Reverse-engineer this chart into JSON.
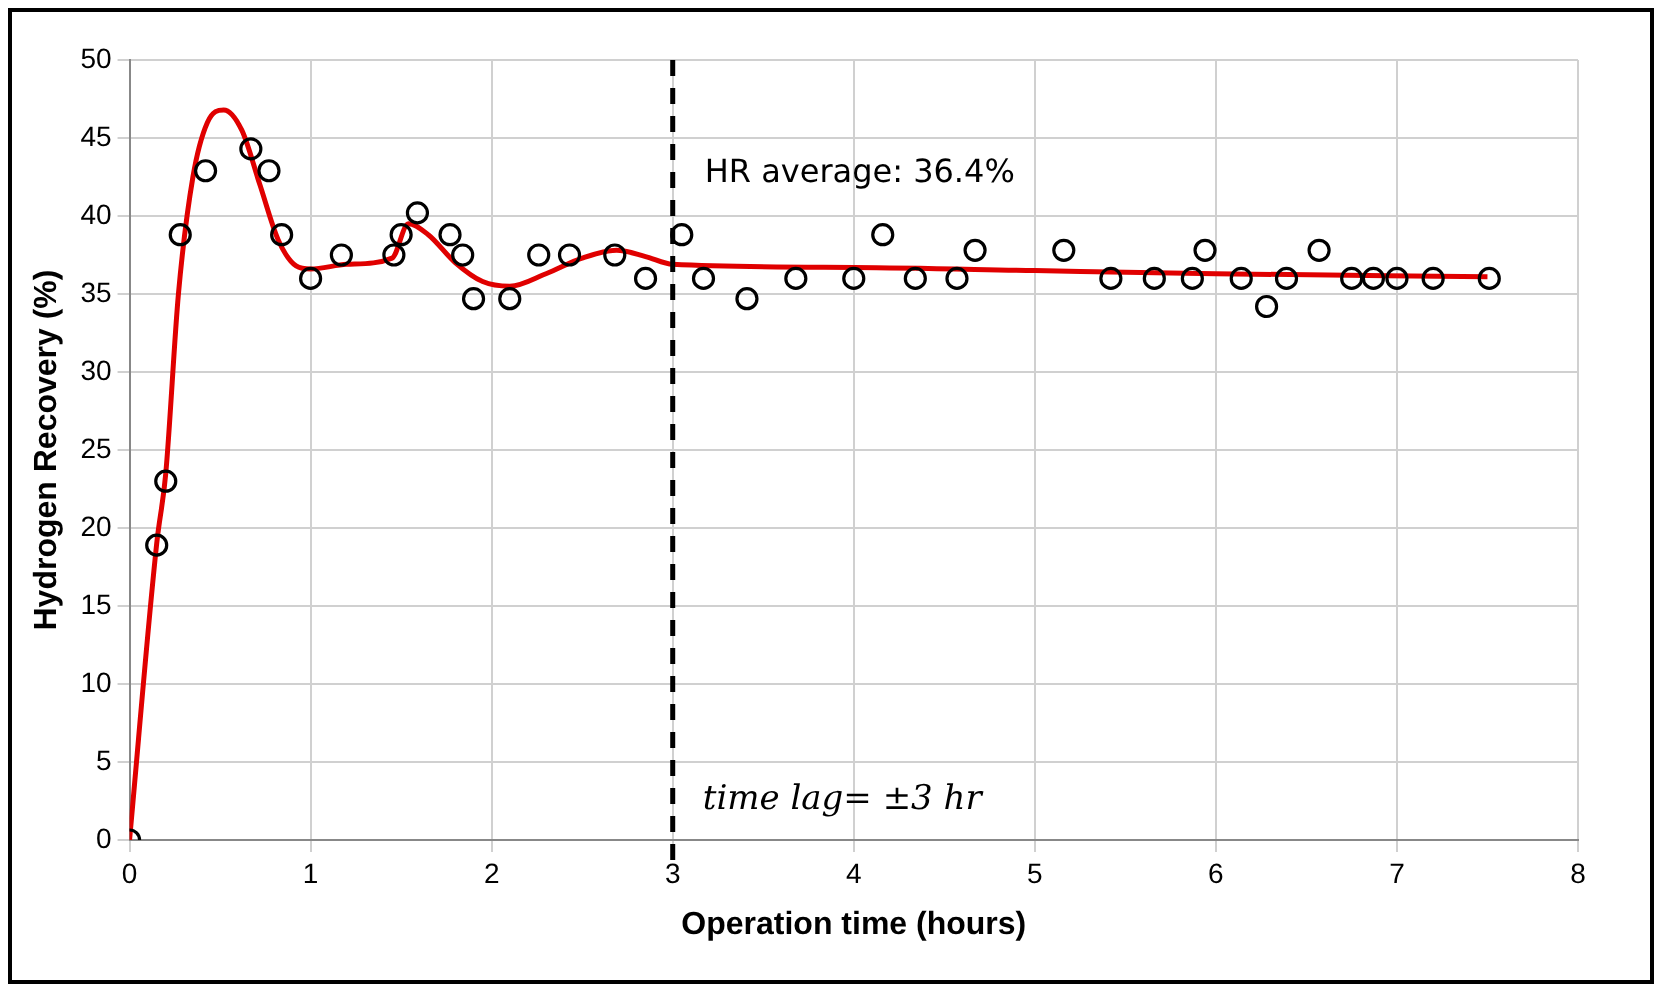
{
  "chart_data": {
    "type": "scatter",
    "xlabel": "Operation time (hours)",
    "ylabel": "Hydrogen Recovery (%)",
    "xlim": [
      0,
      8
    ],
    "xticks": [
      0,
      1,
      2,
      3,
      4,
      5,
      6,
      7,
      8
    ],
    "ylim": [
      0,
      50
    ],
    "yticks": [
      0,
      5,
      10,
      15,
      20,
      25,
      30,
      35,
      40,
      45,
      50
    ],
    "grid": true,
    "legend": false,
    "marker": "circle",
    "series": [
      {
        "type": "scatter",
        "color": "#000000",
        "x": [
          0,
          0.15,
          0.2,
          0.28,
          0.42,
          0.67,
          0.77,
          0.84,
          1.0,
          1.17,
          1.46,
          1.5,
          1.59,
          1.77,
          1.84,
          1.9,
          2.1,
          2.26,
          2.43,
          2.68,
          2.85,
          3.05,
          3.17,
          3.41,
          3.68,
          4.0,
          4.16,
          4.34,
          4.57,
          4.67,
          5.16,
          5.42,
          5.66,
          5.87,
          5.94,
          6.14,
          6.28,
          6.39,
          6.57,
          6.75,
          6.87,
          7.0,
          7.2,
          7.51
        ],
        "values": [
          0,
          18.9,
          23,
          38.8,
          42.9,
          44.3,
          42.9,
          38.8,
          36,
          37.5,
          37.5,
          38.8,
          40.2,
          38.8,
          37.5,
          34.7,
          34.7,
          37.5,
          37.5,
          37.5,
          36,
          38.8,
          36,
          34.7,
          36,
          36,
          38.8,
          36,
          36,
          37.8,
          37.8,
          36,
          36,
          36,
          37.8,
          36,
          34.2,
          36,
          37.8,
          36,
          36,
          36,
          36,
          36
        ]
      },
      {
        "type": "line",
        "color": "#e00000",
        "marker": "none",
        "line_style": "solid",
        "x": [
          0,
          0.15,
          0.2,
          0.27,
          0.35,
          0.43,
          0.52,
          0.62,
          0.72,
          0.82,
          0.92,
          1.0,
          1.2,
          1.45,
          1.54,
          1.65,
          1.8,
          1.95,
          2.1,
          2.3,
          2.5,
          2.69,
          2.85,
          3.0,
          4,
          5,
          6,
          7.5
        ],
        "values": [
          0,
          19,
          23.5,
          35,
          42.5,
          46,
          46.8,
          45.5,
          42,
          38.5,
          36.8,
          36.6,
          36.9,
          37.3,
          39.5,
          38.8,
          37,
          35.8,
          35.5,
          36.3,
          37.3,
          37.8,
          37.4,
          36.9,
          36.7,
          36.5,
          36.3,
          36.1
        ]
      }
    ],
    "ref_lines": [
      {
        "axis": "x",
        "value": 3,
        "label": "time lag= ±3 hr",
        "color": "#000000",
        "line_style": "dashed"
      }
    ],
    "annotations": [
      "HR average: 36.4%"
    ]
  }
}
